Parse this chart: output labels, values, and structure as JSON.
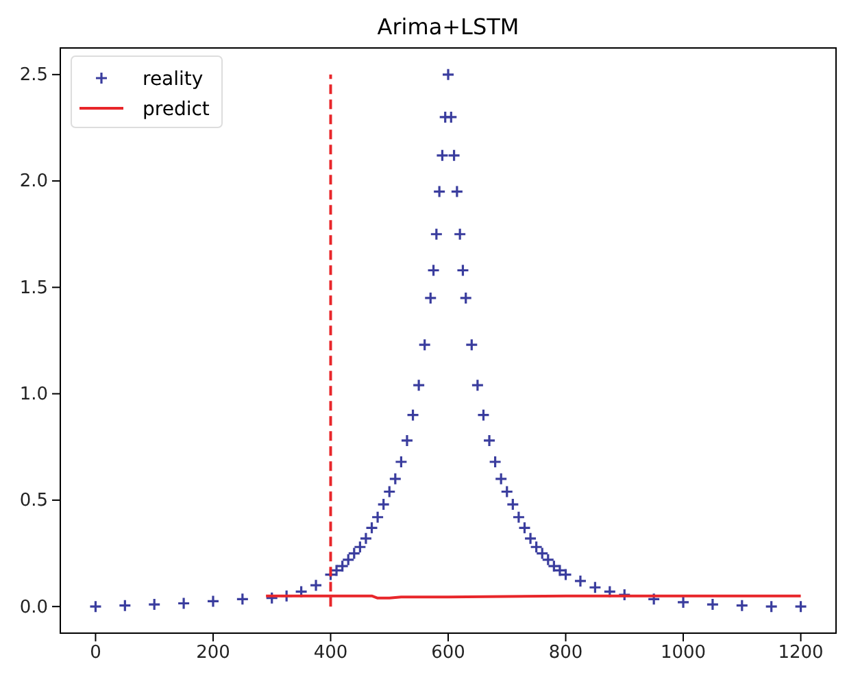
{
  "chart_data": {
    "type": "scatter",
    "title": "Arima+LSTM",
    "legend": "top left",
    "grid": false,
    "xlim": [
      -60,
      1260
    ],
    "ylim": [
      -0.125,
      2.625
    ],
    "xticks": [
      0,
      200,
      400,
      600,
      800,
      1000,
      1200
    ],
    "yticks": [
      {
        "value": 0,
        "label": "0.0"
      },
      {
        "value": 0.5,
        "label": "0.5"
      },
      {
        "value": 1,
        "label": "1.0"
      },
      {
        "value": 1.5,
        "label": "1.5"
      },
      {
        "value": 2,
        "label": "2.0"
      },
      {
        "value": 2.5,
        "label": "2.5"
      }
    ],
    "series": [
      {
        "name": "reality",
        "marker": "cross",
        "color": "#3a3d9e",
        "x": [
          0,
          50,
          100,
          150,
          200,
          250,
          300,
          325,
          350,
          375,
          400,
          410,
          420,
          430,
          440,
          450,
          460,
          470,
          480,
          490,
          500,
          510,
          520,
          530,
          540,
          550,
          560,
          570,
          575,
          580,
          585,
          590,
          595,
          600,
          605,
          610,
          615,
          620,
          625,
          630,
          640,
          650,
          660,
          670,
          680,
          690,
          700,
          710,
          720,
          730,
          740,
          750,
          760,
          770,
          780,
          790,
          800,
          825,
          850,
          875,
          900,
          950,
          1000,
          1050,
          1100,
          1150,
          1200
        ],
        "values": [
          0.0,
          0.005,
          0.01,
          0.015,
          0.025,
          0.035,
          0.04,
          0.05,
          0.07,
          0.1,
          0.15,
          0.17,
          0.19,
          0.22,
          0.25,
          0.28,
          0.32,
          0.37,
          0.42,
          0.48,
          0.54,
          0.6,
          0.68,
          0.78,
          0.9,
          1.04,
          1.23,
          1.45,
          1.58,
          1.75,
          1.95,
          2.12,
          2.3,
          2.5,
          2.3,
          2.12,
          1.95,
          1.75,
          1.58,
          1.45,
          1.23,
          1.04,
          0.9,
          0.78,
          0.68,
          0.6,
          0.54,
          0.48,
          0.42,
          0.37,
          0.32,
          0.28,
          0.25,
          0.22,
          0.19,
          0.17,
          0.15,
          0.12,
          0.09,
          0.07,
          0.055,
          0.035,
          0.02,
          0.01,
          0.005,
          0.0,
          0.0
        ]
      },
      {
        "name": "predict",
        "type": "line",
        "marker": "none",
        "line_style": "solid",
        "color": "#e8262a",
        "x": [
          290,
          470,
          480,
          500,
          520,
          600,
          800,
          1200
        ],
        "values": [
          0.05,
          0.05,
          0.04,
          0.04,
          0.045,
          0.045,
          0.05,
          0.05
        ]
      },
      {
        "type": "line",
        "marker": "none",
        "line_style": "dashed",
        "color": "#e8262a",
        "x": [
          400,
          400
        ],
        "values": [
          0,
          2.5
        ]
      }
    ]
  }
}
